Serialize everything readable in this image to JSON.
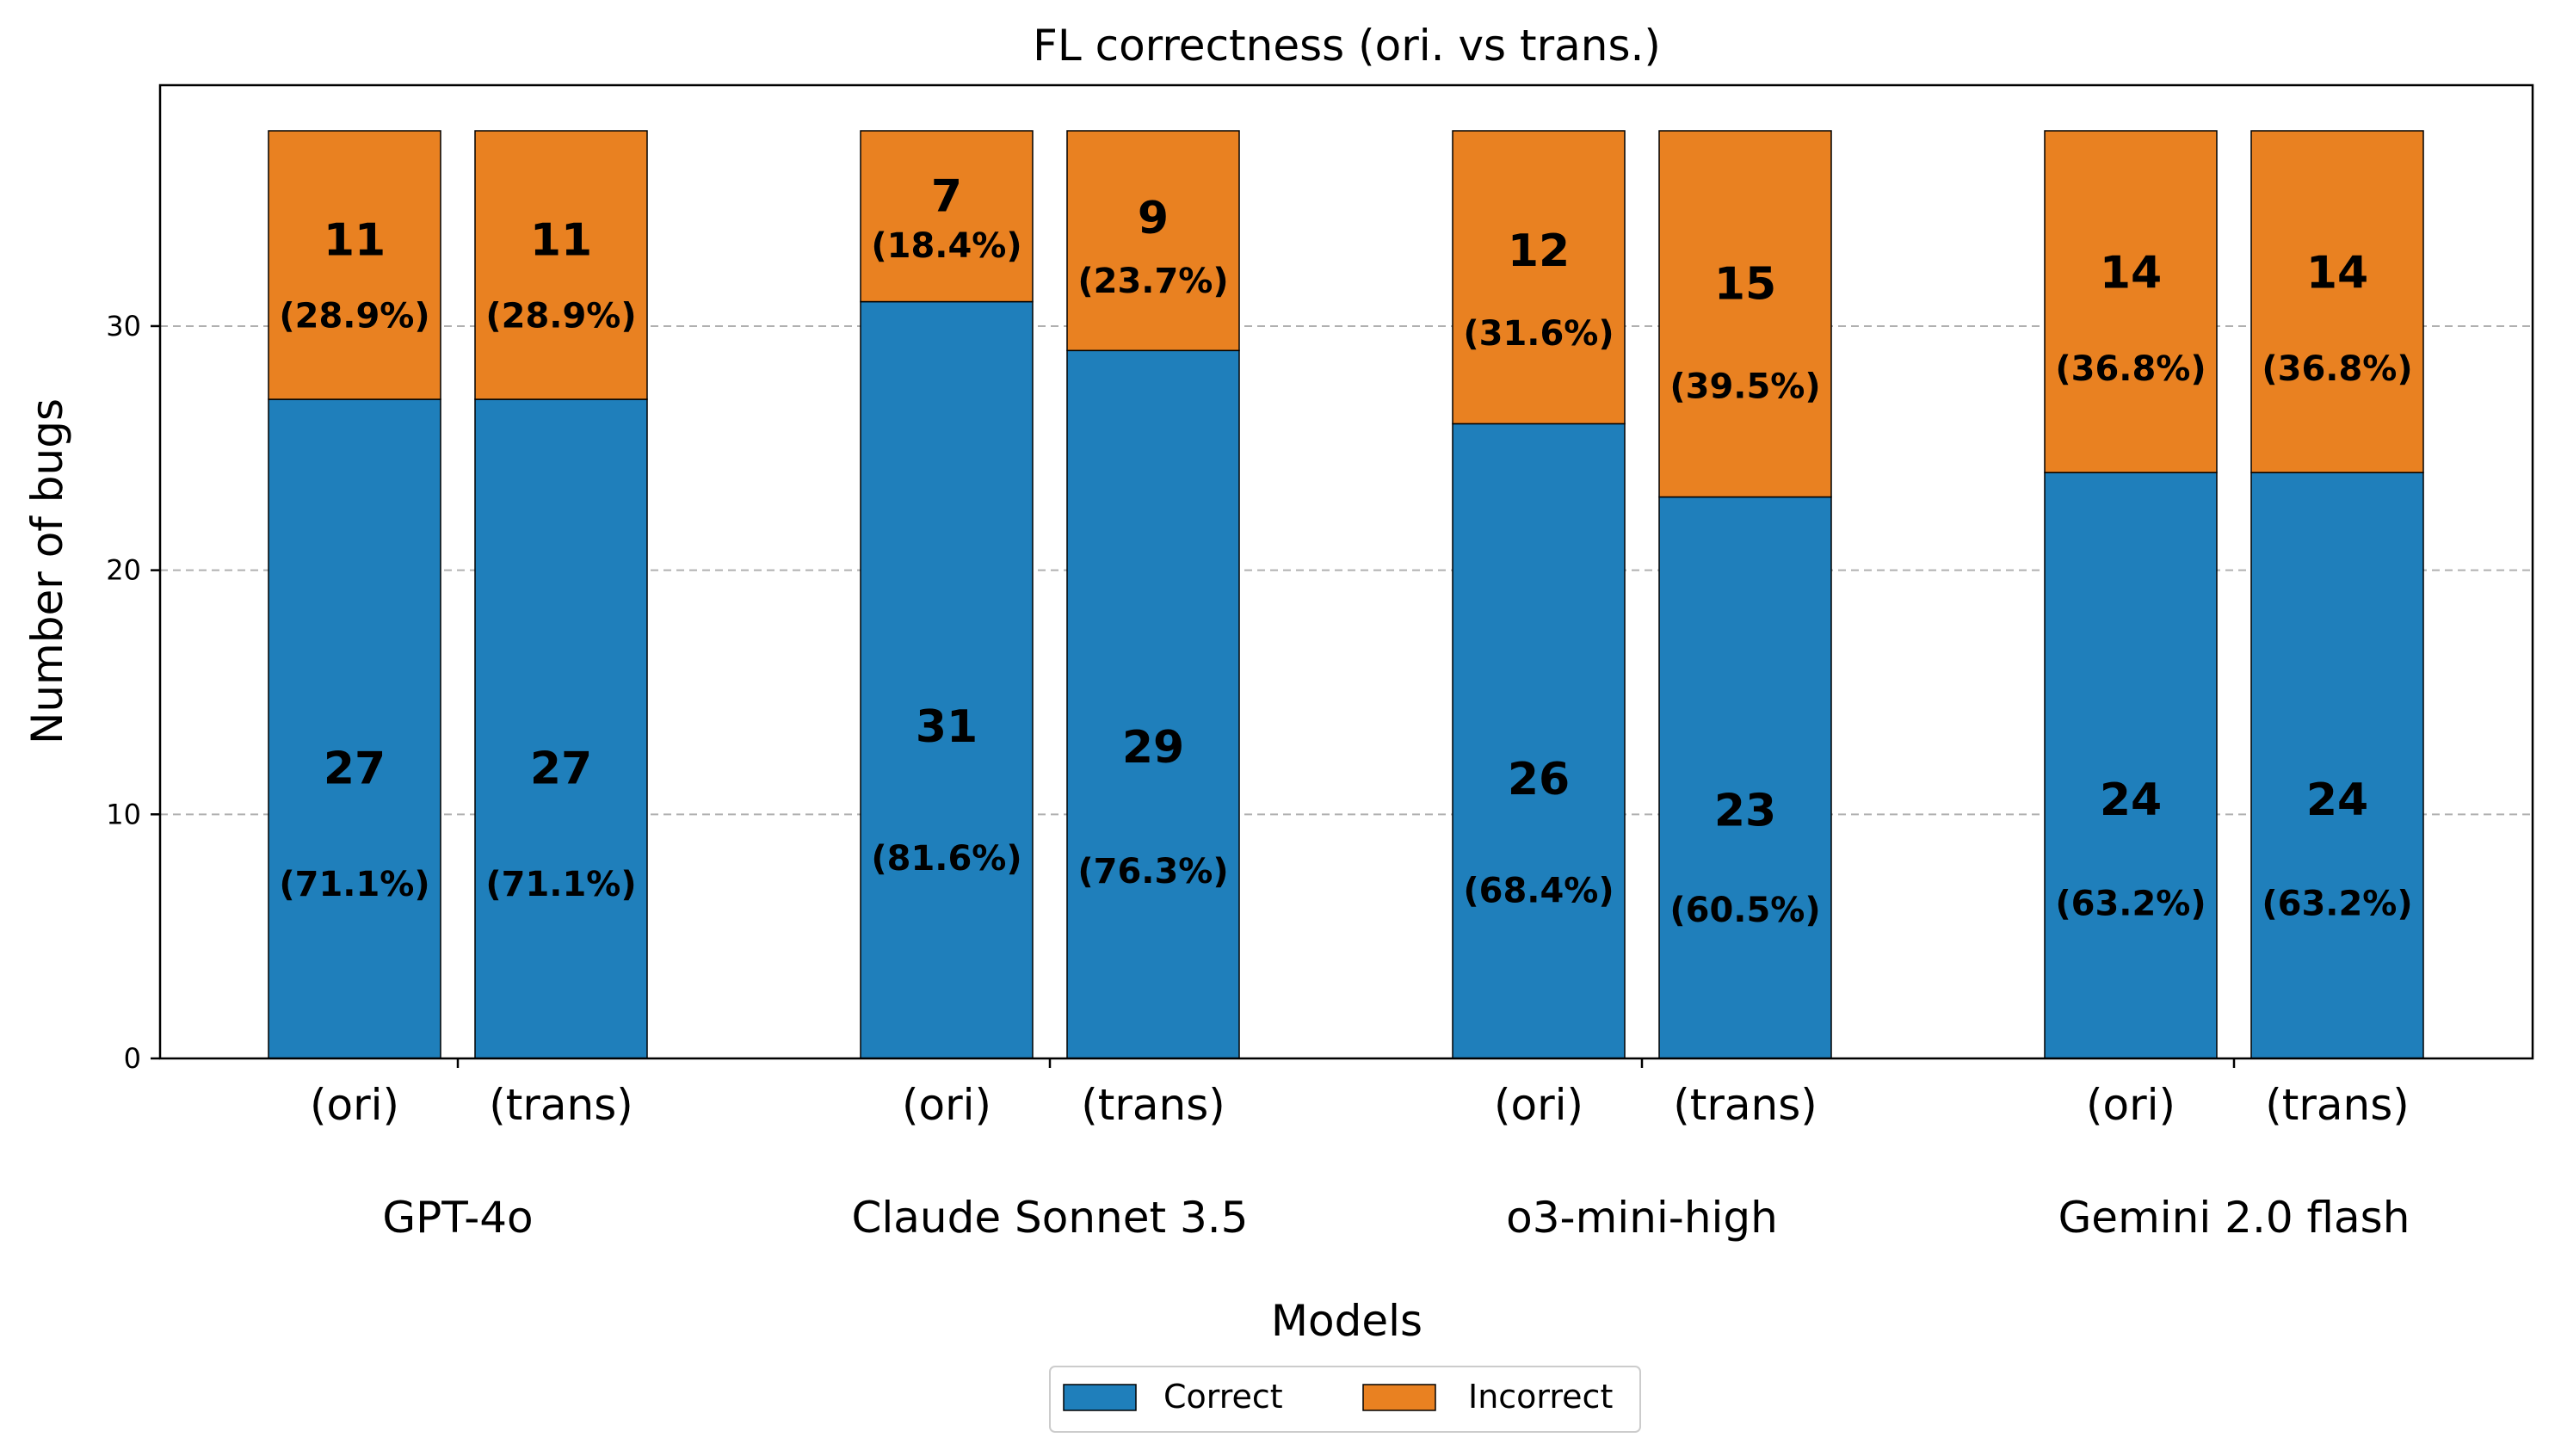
{
  "chart_data": {
    "type": "bar",
    "stacked": true,
    "title": "FL correctness (ori. vs trans.)",
    "xlabel": "Models",
    "ylabel": "Number of bugs",
    "ylim": [
      0,
      38
    ],
    "yticks": [
      0,
      10,
      20,
      30
    ],
    "grid": "y-dashed",
    "legend_position": "bottom-center",
    "groups": [
      "GPT-4o",
      "Claude Sonnet 3.5",
      "o3-mini-high",
      "Gemini 2.0 flash"
    ],
    "sub_categories": [
      "(ori)",
      "(trans)"
    ],
    "series": [
      {
        "name": "Correct",
        "color": "#1f7fbb",
        "values": [
          27,
          27,
          31,
          29,
          26,
          23,
          24,
          24
        ],
        "labels": [
          "(71.1%)",
          "(71.1%)",
          "(81.6%)",
          "(76.3%)",
          "(68.4%)",
          "(60.5%)",
          "(63.2%)",
          "(63.2%)"
        ]
      },
      {
        "name": "Incorrect",
        "color": "#e98121",
        "values": [
          11,
          11,
          7,
          9,
          12,
          15,
          14,
          14
        ],
        "labels": [
          "(28.9%)",
          "(28.9%)",
          "(18.4%)",
          "(23.7%)",
          "(31.6%)",
          "(39.5%)",
          "(36.8%)",
          "(36.8%)"
        ]
      }
    ]
  }
}
